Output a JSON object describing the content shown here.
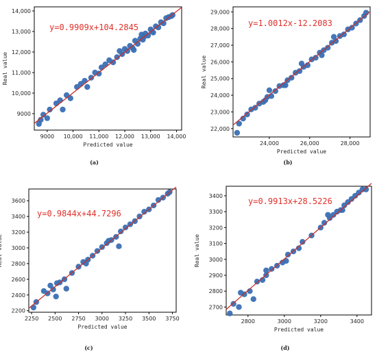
{
  "figure": {
    "colors": {
      "point": "#3a6fb4",
      "fit_line": "#c9302c",
      "equation": "#e0302a",
      "axis": "#000000"
    }
  },
  "chart_data": [
    {
      "type": "scatter",
      "caption": "(a)",
      "equation": "y=0.9909x+104.2845",
      "xlabel": "Predicted value",
      "ylabel": "Real value",
      "xlim": [
        8500,
        14200
      ],
      "ylim": [
        8200,
        14200
      ],
      "xticks": [
        9000,
        10000,
        11000,
        12000,
        13000,
        14000
      ],
      "xtick_labels": [
        "9000",
        "10,000",
        "11,000",
        "12,000",
        "13,000",
        "14,000"
      ],
      "yticks": [
        9000,
        10000,
        11000,
        12000,
        13000,
        14000
      ],
      "ytick_labels": [
        "9000",
        "10,000",
        "11,000",
        "12,000",
        "13,000",
        "14,000"
      ],
      "fit": {
        "slope": 0.9909,
        "intercept": 104.2845
      },
      "points": [
        [
          8680,
          8500
        ],
        [
          8750,
          8700
        ],
        [
          8850,
          8950
        ],
        [
          9000,
          8780
        ],
        [
          9100,
          9200
        ],
        [
          9350,
          9500
        ],
        [
          9500,
          9650
        ],
        [
          9600,
          9200
        ],
        [
          9750,
          9900
        ],
        [
          9900,
          9750
        ],
        [
          10150,
          10300
        ],
        [
          10300,
          10450
        ],
        [
          10450,
          10600
        ],
        [
          10550,
          10300
        ],
        [
          10700,
          10750
        ],
        [
          10850,
          11000
        ],
        [
          11000,
          10950
        ],
        [
          11100,
          11250
        ],
        [
          11250,
          11400
        ],
        [
          11400,
          11600
        ],
        [
          11550,
          11500
        ],
        [
          11700,
          11750
        ],
        [
          11800,
          12050
        ],
        [
          11900,
          11900
        ],
        [
          12000,
          12150
        ],
        [
          12100,
          12050
        ],
        [
          12200,
          12300
        ],
        [
          12300,
          12200
        ],
        [
          12400,
          12550
        ],
        [
          12500,
          12400
        ],
        [
          12600,
          12650
        ],
        [
          12700,
          12600
        ],
        [
          12800,
          12900
        ],
        [
          12900,
          12800
        ],
        [
          13000,
          13100
        ],
        [
          13100,
          12950
        ],
        [
          13200,
          13250
        ],
        [
          13300,
          13200
        ],
        [
          13400,
          13450
        ],
        [
          13500,
          13400
        ],
        [
          13600,
          13650
        ],
        [
          13700,
          13700
        ],
        [
          13800,
          13750
        ],
        [
          13850,
          13800
        ],
        [
          12650,
          12850
        ],
        [
          12350,
          12100
        ],
        [
          12750,
          12750
        ],
        [
          13050,
          13000
        ]
      ]
    },
    {
      "type": "scatter",
      "caption": "(b)",
      "equation": "y=1.0012x-12.2083",
      "xlabel": "Predicted value",
      "ylabel": "Real value",
      "xlim": [
        22200,
        29000
      ],
      "ylim": [
        21500,
        29300
      ],
      "xticks": [
        24000,
        26000,
        28000
      ],
      "xtick_labels": [
        "24,000",
        "26,000",
        "28,000"
      ],
      "yticks": [
        22000,
        23000,
        24000,
        25000,
        26000,
        27000,
        28000,
        29000
      ],
      "ytick_labels": [
        "22,000",
        "23,000",
        "24,000",
        "25,000",
        "26,000",
        "27,000",
        "28,000",
        "29,000"
      ],
      "fit": {
        "slope": 1.0012,
        "intercept": -12.2083
      },
      "points": [
        [
          22400,
          21750
        ],
        [
          22500,
          22300
        ],
        [
          22700,
          22600
        ],
        [
          22900,
          22850
        ],
        [
          23100,
          23150
        ],
        [
          23300,
          23250
        ],
        [
          23500,
          23500
        ],
        [
          23700,
          23600
        ],
        [
          23900,
          23900
        ],
        [
          24000,
          24300
        ],
        [
          24100,
          23950
        ],
        [
          24300,
          24250
        ],
        [
          24500,
          24550
        ],
        [
          24700,
          24600
        ],
        [
          24900,
          24900
        ],
        [
          25100,
          25050
        ],
        [
          25300,
          25350
        ],
        [
          25500,
          25450
        ],
        [
          25700,
          25700
        ],
        [
          25900,
          25800
        ],
        [
          26100,
          26150
        ],
        [
          26300,
          26250
        ],
        [
          26500,
          26550
        ],
        [
          26700,
          26700
        ],
        [
          26900,
          26850
        ],
        [
          27100,
          27150
        ],
        [
          27300,
          27250
        ],
        [
          27500,
          27550
        ],
        [
          27700,
          27650
        ],
        [
          27900,
          27950
        ],
        [
          28100,
          28050
        ],
        [
          28300,
          28300
        ],
        [
          28500,
          28500
        ],
        [
          28700,
          28750
        ],
        [
          28800,
          28950
        ],
        [
          25600,
          25900
        ],
        [
          24800,
          24600
        ],
        [
          27200,
          27500
        ],
        [
          23800,
          23700
        ],
        [
          26600,
          26400
        ]
      ]
    },
    {
      "type": "scatter",
      "caption": "(c)",
      "equation": "y=0.9844x+44.7296",
      "xlabel": "Predicted value",
      "ylabel": "Real value",
      "xlim": [
        2220,
        3790
      ],
      "ylim": [
        2180,
        3750
      ],
      "xticks": [
        2250,
        2500,
        2750,
        3000,
        3250,
        3500,
        3750
      ],
      "xtick_labels": [
        "2250",
        "2500",
        "2750",
        "3000",
        "3250",
        "3500",
        "3750"
      ],
      "yticks": [
        2200,
        2400,
        2600,
        2800,
        3000,
        3200,
        3400,
        3600
      ],
      "ytick_labels": [
        "2200",
        "2400",
        "2600",
        "2800",
        "3000",
        "3200",
        "3400",
        "3600"
      ],
      "fit": {
        "slope": 0.9844,
        "intercept": 44.7296
      },
      "points": [
        [
          2270,
          2240
        ],
        [
          2300,
          2310
        ],
        [
          2380,
          2450
        ],
        [
          2420,
          2420
        ],
        [
          2450,
          2520
        ],
        [
          2480,
          2470
        ],
        [
          2510,
          2380
        ],
        [
          2550,
          2560
        ],
        [
          2600,
          2600
        ],
        [
          2620,
          2480
        ],
        [
          2680,
          2680
        ],
        [
          2750,
          2760
        ],
        [
          2800,
          2820
        ],
        [
          2850,
          2850
        ],
        [
          2900,
          2900
        ],
        [
          2950,
          2960
        ],
        [
          3000,
          3010
        ],
        [
          3050,
          3060
        ],
        [
          3100,
          3100
        ],
        [
          3150,
          3140
        ],
        [
          3180,
          3020
        ],
        [
          3200,
          3210
        ],
        [
          3250,
          3260
        ],
        [
          3300,
          3300
        ],
        [
          3350,
          3340
        ],
        [
          3400,
          3400
        ],
        [
          3450,
          3460
        ],
        [
          3500,
          3490
        ],
        [
          3550,
          3540
        ],
        [
          3600,
          3610
        ],
        [
          3650,
          3640
        ],
        [
          3700,
          3690
        ],
        [
          3720,
          3710
        ],
        [
          2520,
          2550
        ],
        [
          2830,
          2800
        ],
        [
          3070,
          3090
        ]
      ]
    },
    {
      "type": "scatter",
      "caption": "(d)",
      "equation": "y=0.9913x+28.5226",
      "xlabel": "Predicted value",
      "ylabel": "Real value",
      "xlim": [
        2680,
        3480
      ],
      "ylim": [
        2650,
        3460
      ],
      "xticks": [
        2800,
        3000,
        3200,
        3400
      ],
      "xtick_labels": [
        "2800",
        "3000",
        "3200",
        "3400"
      ],
      "yticks": [
        2700,
        2800,
        2900,
        3000,
        3100,
        3200,
        3300,
        3400
      ],
      "ytick_labels": [
        "2700",
        "2800",
        "2900",
        "3000",
        "3100",
        "3200",
        "3300",
        "3400"
      ],
      "fit": {
        "slope": 0.9913,
        "intercept": 28.5226
      },
      "points": [
        [
          2700,
          2660
        ],
        [
          2720,
          2720
        ],
        [
          2750,
          2700
        ],
        [
          2780,
          2780
        ],
        [
          2810,
          2800
        ],
        [
          2830,
          2750
        ],
        [
          2850,
          2860
        ],
        [
          2880,
          2870
        ],
        [
          2900,
          2900
        ],
        [
          2930,
          2940
        ],
        [
          2960,
          2960
        ],
        [
          2990,
          2980
        ],
        [
          3020,
          3030
        ],
        [
          3050,
          3050
        ],
        [
          3080,
          3070
        ],
        [
          3100,
          3110
        ],
        [
          3150,
          3150
        ],
        [
          3200,
          3200
        ],
        [
          3220,
          3230
        ],
        [
          3250,
          3260
        ],
        [
          3270,
          3280
        ],
        [
          3290,
          3300
        ],
        [
          3310,
          3310
        ],
        [
          3330,
          3340
        ],
        [
          3350,
          3360
        ],
        [
          3370,
          3380
        ],
        [
          3390,
          3400
        ],
        [
          3410,
          3420
        ],
        [
          3430,
          3440
        ],
        [
          3450,
          3440
        ],
        [
          2900,
          2930
        ],
        [
          3010,
          2990
        ],
        [
          3320,
          3310
        ],
        [
          3240,
          3280
        ],
        [
          2760,
          2790
        ]
      ]
    }
  ]
}
